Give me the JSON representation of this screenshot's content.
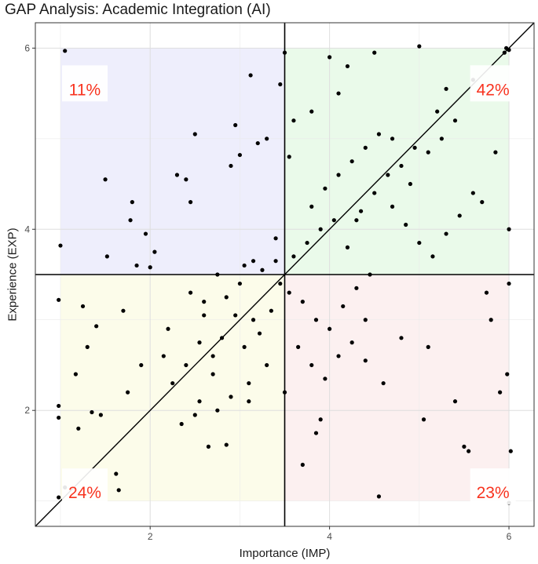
{
  "chart_data": {
    "type": "scatter",
    "title": "GAP Analysis: Academic Integration (AI)",
    "xlabel": "Importance (IMP)",
    "ylabel": "Experience (EXP)",
    "xlim": [
      0.72,
      6.28
    ],
    "ylim": [
      0.72,
      6.28
    ],
    "x_ticks": [
      2,
      4,
      6
    ],
    "y_ticks": [
      2,
      4,
      6
    ],
    "grid": true,
    "reference_lines": {
      "vline": 3.5,
      "hline": 3.5,
      "diagonal": "y = x"
    },
    "quadrants": [
      {
        "label": "11%",
        "x_range": [
          1,
          3.5
        ],
        "y_range": [
          3.5,
          6
        ],
        "color": "#eeeefc"
      },
      {
        "label": "42%",
        "x_range": [
          3.5,
          6
        ],
        "y_range": [
          3.5,
          6
        ],
        "color": "#eafaea"
      },
      {
        "label": "24%",
        "x_range": [
          1,
          3.5
        ],
        "y_range": [
          1,
          3.5
        ],
        "color": "#fcfcea"
      },
      {
        "label": "23%",
        "x_range": [
          3.5,
          6
        ],
        "y_range": [
          1,
          3.5
        ],
        "color": "#fcf0f0"
      }
    ],
    "points": [
      [
        1.05,
        5.97
      ],
      [
        1.0,
        3.82
      ],
      [
        0.98,
        3.22
      ],
      [
        0.98,
        2.05
      ],
      [
        0.98,
        1.92
      ],
      [
        0.98,
        1.04
      ],
      [
        1.05,
        1.15
      ],
      [
        1.17,
        2.4
      ],
      [
        1.2,
        1.8
      ],
      [
        1.25,
        3.15
      ],
      [
        1.3,
        2.7
      ],
      [
        1.35,
        1.98
      ],
      [
        1.45,
        1.95
      ],
      [
        1.5,
        4.55
      ],
      [
        1.52,
        3.7
      ],
      [
        1.4,
        2.93
      ],
      [
        1.62,
        1.3
      ],
      [
        1.65,
        1.12
      ],
      [
        1.7,
        3.1
      ],
      [
        1.75,
        2.2
      ],
      [
        1.78,
        4.1
      ],
      [
        1.8,
        4.3
      ],
      [
        1.85,
        3.6
      ],
      [
        1.9,
        2.5
      ],
      [
        1.95,
        3.95
      ],
      [
        2.0,
        3.58
      ],
      [
        2.05,
        3.75
      ],
      [
        2.15,
        2.6
      ],
      [
        2.2,
        2.9
      ],
      [
        2.3,
        4.6
      ],
      [
        2.4,
        4.55
      ],
      [
        2.45,
        4.3
      ],
      [
        2.5,
        5.05
      ],
      [
        2.55,
        2.1
      ],
      [
        2.6,
        3.2
      ],
      [
        2.65,
        1.6
      ],
      [
        2.7,
        2.4
      ],
      [
        2.75,
        3.5
      ],
      [
        2.8,
        2.8
      ],
      [
        2.85,
        1.62
      ],
      [
        2.9,
        4.7
      ],
      [
        2.95,
        5.15
      ],
      [
        3.0,
        4.82
      ],
      [
        3.05,
        3.6
      ],
      [
        3.1,
        2.1
      ],
      [
        3.12,
        5.7
      ],
      [
        3.2,
        4.95
      ],
      [
        3.3,
        5.0
      ],
      [
        3.4,
        3.9
      ],
      [
        3.45,
        5.6
      ],
      [
        3.5,
        5.95
      ],
      [
        3.55,
        4.8
      ],
      [
        3.6,
        5.2
      ],
      [
        3.7,
        1.4
      ],
      [
        3.8,
        5.3
      ],
      [
        3.85,
        1.75
      ],
      [
        3.9,
        1.9
      ],
      [
        4.0,
        5.9
      ],
      [
        4.1,
        5.5
      ],
      [
        4.2,
        5.8
      ],
      [
        4.3,
        4.1
      ],
      [
        4.4,
        3.0
      ],
      [
        4.5,
        5.95
      ],
      [
        4.55,
        1.05
      ],
      [
        4.6,
        2.3
      ],
      [
        4.7,
        5.0
      ],
      [
        4.8,
        2.8
      ],
      [
        4.9,
        4.5
      ],
      [
        5.0,
        6.02
      ],
      [
        5.05,
        1.9
      ],
      [
        5.1,
        2.7
      ],
      [
        5.2,
        5.3
      ],
      [
        5.3,
        5.55
      ],
      [
        5.4,
        2.1
      ],
      [
        5.5,
        1.6
      ],
      [
        5.55,
        1.55
      ],
      [
        5.6,
        5.65
      ],
      [
        5.7,
        4.3
      ],
      [
        5.75,
        3.3
      ],
      [
        5.8,
        3.0
      ],
      [
        5.85,
        4.85
      ],
      [
        5.9,
        2.2
      ],
      [
        5.95,
        5.95
      ],
      [
        5.97,
        6.0
      ],
      [
        6.0,
        5.98
      ],
      [
        6.0,
        0.98
      ],
      [
        6.0,
        3.4
      ],
      [
        6.0,
        4.0
      ],
      [
        5.98,
        2.4
      ],
      [
        6.02,
        1.55
      ],
      [
        3.15,
        3.0
      ],
      [
        3.22,
        2.85
      ],
      [
        3.35,
        3.1
      ],
      [
        3.05,
        2.7
      ],
      [
        2.95,
        3.05
      ],
      [
        3.45,
        3.4
      ],
      [
        3.6,
        3.7
      ],
      [
        3.75,
        3.85
      ],
      [
        3.9,
        4.0
      ],
      [
        4.05,
        4.1
      ],
      [
        4.2,
        3.8
      ],
      [
        4.35,
        4.2
      ],
      [
        4.5,
        4.4
      ],
      [
        4.65,
        4.6
      ],
      [
        4.8,
        4.7
      ],
      [
        4.95,
        4.9
      ],
      [
        5.1,
        4.85
      ],
      [
        5.25,
        5.0
      ],
      [
        5.4,
        5.2
      ],
      [
        3.25,
        3.55
      ],
      [
        3.4,
        3.65
      ],
      [
        3.55,
        3.3
      ],
      [
        3.7,
        3.2
      ],
      [
        3.85,
        3.0
      ],
      [
        4.0,
        2.9
      ],
      [
        4.15,
        3.15
      ],
      [
        4.3,
        3.35
      ],
      [
        4.45,
        3.5
      ],
      [
        2.7,
        2.6
      ],
      [
        2.55,
        2.75
      ],
      [
        2.4,
        2.5
      ],
      [
        2.25,
        2.3
      ],
      [
        2.85,
        3.25
      ],
      [
        3.0,
        3.4
      ],
      [
        3.15,
        3.65
      ],
      [
        2.6,
        3.05
      ],
      [
        2.45,
        3.3
      ],
      [
        3.8,
        4.25
      ],
      [
        3.95,
        4.45
      ],
      [
        4.1,
        4.6
      ],
      [
        4.25,
        4.75
      ],
      [
        4.4,
        4.9
      ],
      [
        4.55,
        5.05
      ],
      [
        4.7,
        4.25
      ],
      [
        4.85,
        4.05
      ],
      [
        5.0,
        3.85
      ],
      [
        5.15,
        3.7
      ],
      [
        5.3,
        3.95
      ],
      [
        5.45,
        4.15
      ],
      [
        5.6,
        4.4
      ],
      [
        3.65,
        2.7
      ],
      [
        3.8,
        2.5
      ],
      [
        3.95,
        2.35
      ],
      [
        4.1,
        2.6
      ],
      [
        4.25,
        2.75
      ],
      [
        4.4,
        2.55
      ],
      [
        3.3,
        2.5
      ],
      [
        3.1,
        2.3
      ],
      [
        2.9,
        2.15
      ],
      [
        2.75,
        2.0
      ],
      [
        2.5,
        1.95
      ],
      [
        2.35,
        1.85
      ],
      [
        3.5,
        2.2
      ]
    ]
  }
}
